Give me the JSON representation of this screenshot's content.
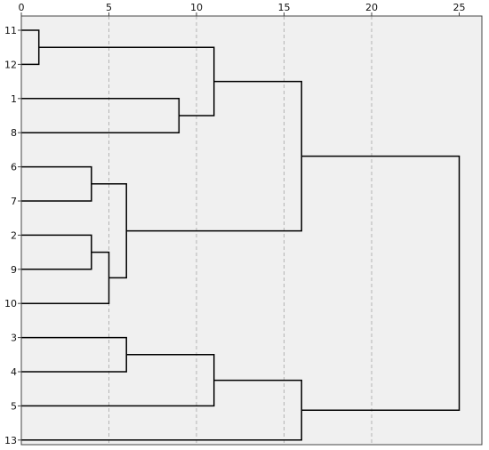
{
  "chart_data": {
    "type": "dendrogram",
    "title": "",
    "xlabel": "",
    "ylabel": "",
    "xlim": [
      0,
      25
    ],
    "x_ticks": [
      0,
      5,
      10,
      15,
      20,
      25
    ],
    "x_tick_labels": [
      "0",
      "5",
      "10",
      "15",
      "20",
      "25"
    ],
    "grid": "vertical-dashed",
    "leaves": [
      "11",
      "12",
      "1",
      "8",
      "6",
      "7",
      "2",
      "9",
      "10",
      "3",
      "4",
      "5",
      "13"
    ],
    "merges": [
      {
        "id": "c1",
        "children": [
          "11",
          "12"
        ],
        "height": 1
      },
      {
        "id": "c2",
        "children": [
          "1",
          "8"
        ],
        "height": 9
      },
      {
        "id": "c3",
        "children": [
          "c1",
          "c2"
        ],
        "height": 11
      },
      {
        "id": "c4",
        "children": [
          "6",
          "7"
        ],
        "height": 4
      },
      {
        "id": "c5",
        "children": [
          "2",
          "9"
        ],
        "height": 4
      },
      {
        "id": "c6",
        "children": [
          "c5",
          "10"
        ],
        "height": 5
      },
      {
        "id": "c7",
        "children": [
          "c4",
          "c6"
        ],
        "height": 6
      },
      {
        "id": "c8",
        "children": [
          "c3",
          "c7"
        ],
        "height": 16
      },
      {
        "id": "c9",
        "children": [
          "3",
          "4"
        ],
        "height": 6
      },
      {
        "id": "c10",
        "children": [
          "c9",
          "5"
        ],
        "height": 11
      },
      {
        "id": "c11",
        "children": [
          "c10",
          "13"
        ],
        "height": 16
      },
      {
        "id": "c12",
        "children": [
          "c8",
          "c11"
        ],
        "height": 25
      }
    ]
  },
  "colors": {
    "plot_background": "#f0f0f0",
    "page_background": "#ffffff",
    "lines": "#000000",
    "grid": "#b4b4b4",
    "border": "#444444"
  }
}
